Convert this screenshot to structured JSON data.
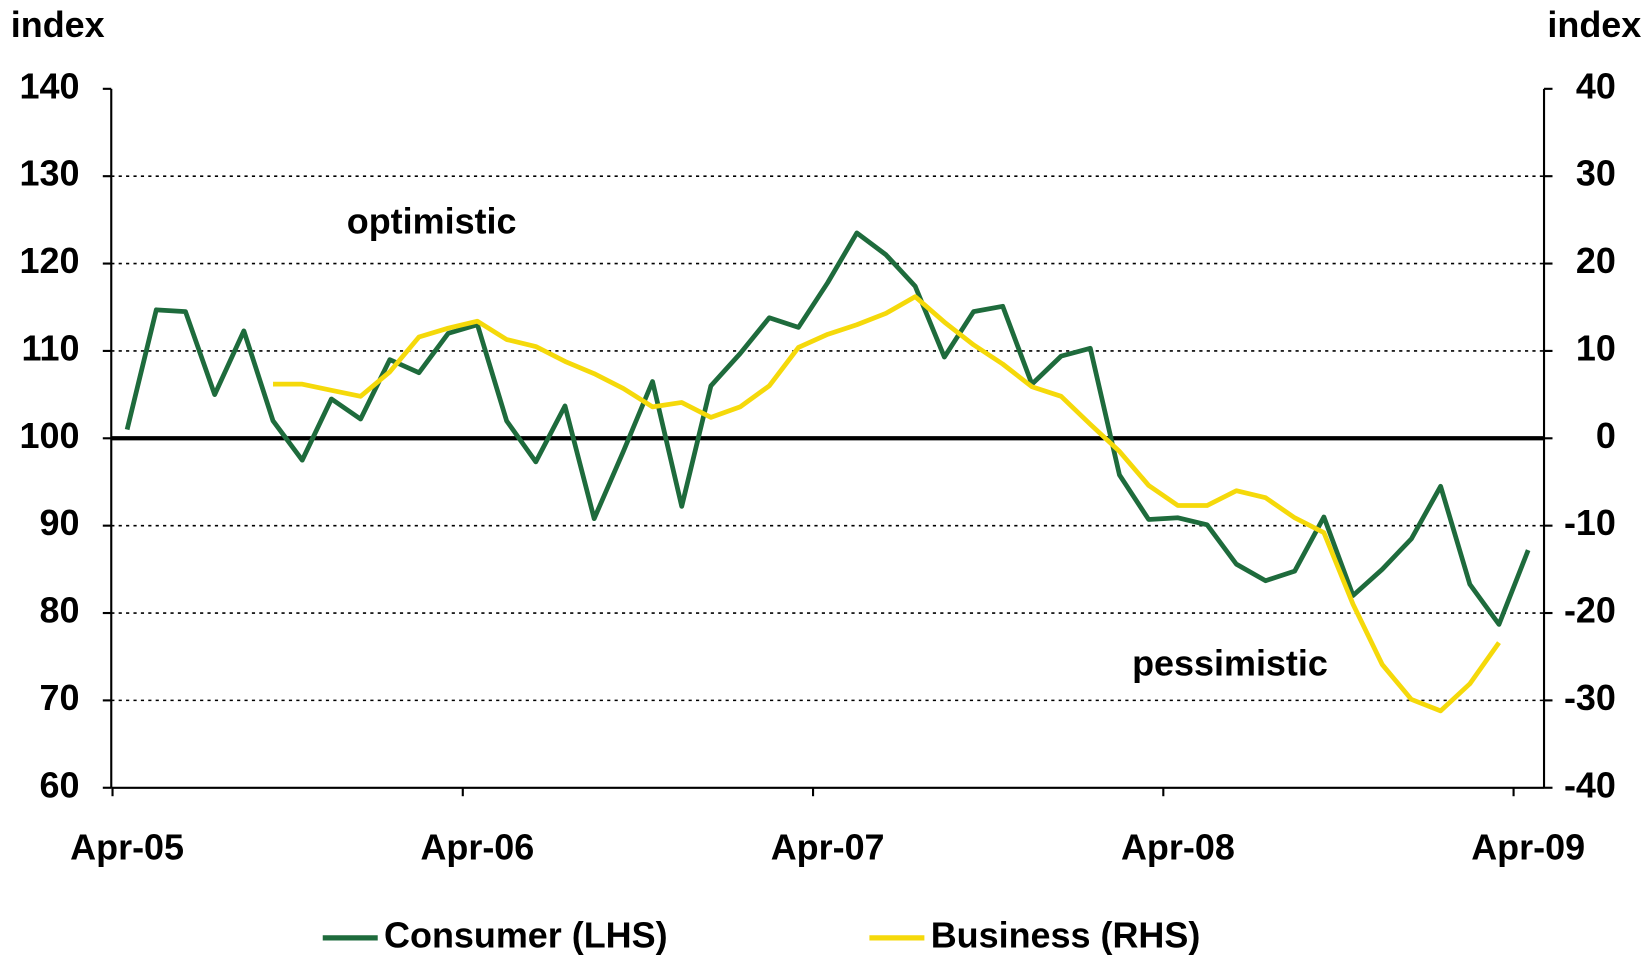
{
  "chart_data": {
    "type": "line",
    "y_label": "index",
    "y2_label": "index",
    "categories": [
      "Apr-05",
      null,
      null,
      null,
      null,
      null,
      null,
      null,
      null,
      null,
      null,
      null,
      "Apr-06",
      null,
      null,
      null,
      null,
      null,
      null,
      null,
      null,
      null,
      null,
      null,
      "Apr-07",
      null,
      null,
      null,
      null,
      null,
      null,
      null,
      null,
      null,
      null,
      null,
      "Apr-08",
      null,
      null,
      null,
      null,
      null,
      null,
      null,
      null,
      null,
      null,
      null,
      "Apr-09"
    ],
    "series": [
      {
        "name": "Consumer (LHS)",
        "color": "#1e6b3c",
        "axis": "y",
        "values": [
          101,
          114.7,
          114.5,
          105,
          112.3,
          102,
          97.5,
          104.5,
          102.2,
          109,
          107.5,
          112,
          113,
          102,
          97.3,
          103.7,
          90.8,
          98.5,
          106.5,
          92.2,
          106,
          109.7,
          113.8,
          112.7,
          117.8,
          123.5,
          121,
          117.4,
          109.3,
          114.5,
          115.1,
          106.2,
          109.4,
          110.3,
          95.8,
          90.7,
          90.9,
          90.1,
          85.6,
          83.7,
          84.8,
          91,
          82,
          85,
          88.5,
          94.5,
          83.3,
          78.7,
          87.2
        ]
      },
      {
        "name": "Business (RHS)",
        "color": "#f5d90a",
        "axis": "y2",
        "values": [
          null,
          null,
          null,
          null,
          null,
          6.2,
          6.2,
          5.5,
          4.8,
          7.6,
          11.6,
          12.6,
          13.4,
          11.3,
          10.5,
          8.8,
          7.4,
          5.7,
          3.6,
          4.1,
          2.4,
          3.6,
          6,
          10.4,
          11.9,
          13,
          14.3,
          16.2,
          13.3,
          10.7,
          8.5,
          5.9,
          4.8,
          1.6,
          -1.5,
          -5.4,
          -7.7,
          -7.7,
          -6,
          -6.8,
          -9.1,
          -10.8,
          -19,
          -25.9,
          -29.9,
          -31.2,
          -28.1,
          -23.4,
          null
        ]
      }
    ],
    "ylim": [
      60,
      140
    ],
    "yticks": [
      60,
      70,
      80,
      90,
      100,
      110,
      120,
      130,
      140
    ],
    "y2lim": [
      -40,
      40
    ],
    "y2ticks": [
      -40,
      -30,
      -20,
      -10,
      0,
      10,
      20,
      30,
      40
    ],
    "grid": true,
    "annotations": [
      "optimistic",
      "pessimistic"
    ],
    "legend": "bottom"
  }
}
